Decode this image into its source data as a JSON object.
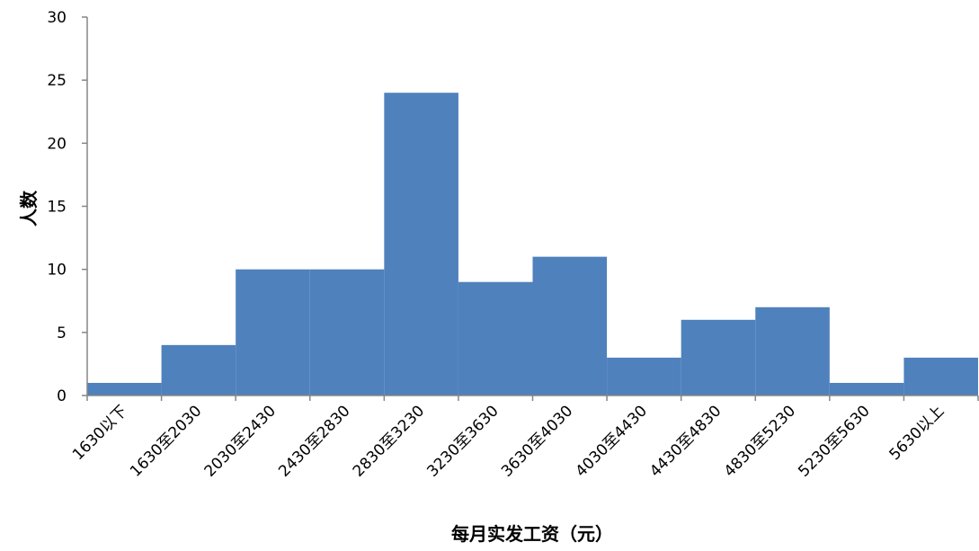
{
  "chart_data": {
    "type": "bar",
    "title": "",
    "xlabel": "每月实发工资（元）",
    "ylabel": "人数",
    "categories": [
      "1630以下",
      "1630至2030",
      "2030至2430",
      "2430至2830",
      "2830至3230",
      "3230至3630",
      "3630至4030",
      "4030至4430",
      "4430至4830",
      "4830至5230",
      "5230至5630",
      "5630以上"
    ],
    "values": [
      1,
      4,
      10,
      10,
      24,
      9,
      11,
      3,
      6,
      7,
      1,
      3
    ],
    "ylim": [
      0,
      30
    ],
    "yticks": [
      0,
      5,
      10,
      15,
      20,
      25,
      30
    ],
    "grid": false,
    "legend": "none",
    "bar_color": "#4F81BD",
    "axis_color": "#868686"
  }
}
